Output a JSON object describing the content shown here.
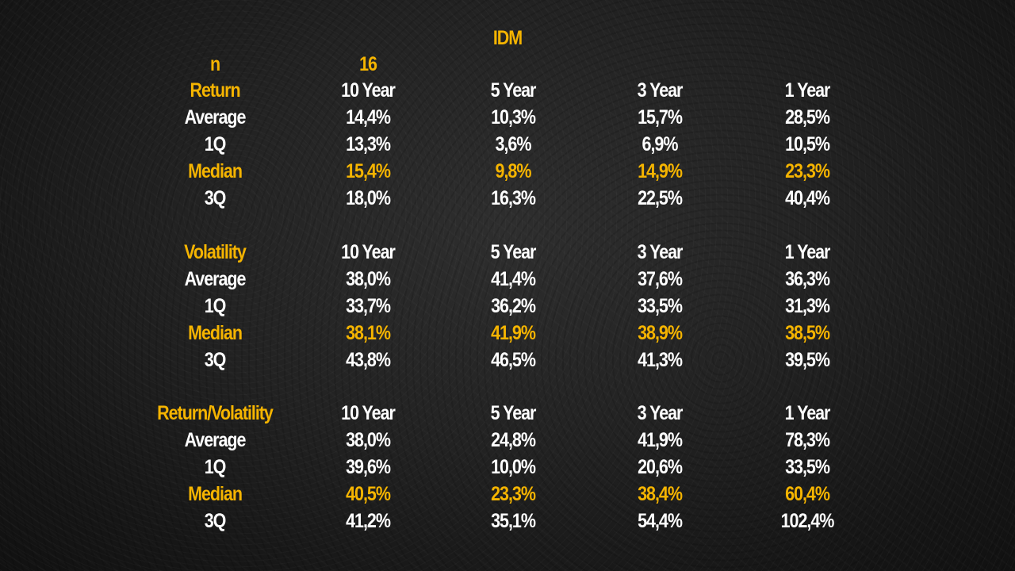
{
  "title": "IDM",
  "n_label": "n",
  "n_value": "16",
  "colors": {
    "accent": "#f5b400",
    "text": "#ffffff",
    "background": "#1e1e1e"
  },
  "sections": [
    {
      "header": "Return",
      "columns": [
        "10 Year",
        "5 Year",
        "3 Year",
        "1 Year"
      ],
      "rows": [
        {
          "label": "Average",
          "values": [
            "14,4%",
            "10,3%",
            "15,7%",
            "28,5%"
          ]
        },
        {
          "label": "1Q",
          "values": [
            "13,3%",
            "3,6%",
            "6,9%",
            "10,5%"
          ]
        },
        {
          "label": "Median",
          "values": [
            "15,4%",
            "9,8%",
            "14,9%",
            "23,3%"
          ]
        },
        {
          "label": "3Q",
          "values": [
            "18,0%",
            "16,3%",
            "22,5%",
            "40,4%"
          ]
        }
      ]
    },
    {
      "header": "Volatility",
      "columns": [
        "10 Year",
        "5 Year",
        "3 Year",
        "1 Year"
      ],
      "rows": [
        {
          "label": "Average",
          "values": [
            "38,0%",
            "41,4%",
            "37,6%",
            "36,3%"
          ]
        },
        {
          "label": "1Q",
          "values": [
            "33,7%",
            "36,2%",
            "33,5%",
            "31,3%"
          ]
        },
        {
          "label": "Median",
          "values": [
            "38,1%",
            "41,9%",
            "38,9%",
            "38,5%"
          ]
        },
        {
          "label": "3Q",
          "values": [
            "43,8%",
            "46,5%",
            "41,3%",
            "39,5%"
          ]
        }
      ]
    },
    {
      "header": "Return/Volatility",
      "columns": [
        "10 Year",
        "5 Year",
        "3 Year",
        "1 Year"
      ],
      "rows": [
        {
          "label": "Average",
          "values": [
            "38,0%",
            "24,8%",
            "41,9%",
            "78,3%"
          ]
        },
        {
          "label": "1Q",
          "values": [
            "39,6%",
            "10,0%",
            "20,6%",
            "33,5%"
          ]
        },
        {
          "label": "Median",
          "values": [
            "40,5%",
            "23,3%",
            "38,4%",
            "60,4%"
          ]
        },
        {
          "label": "3Q",
          "values": [
            "41,2%",
            "35,1%",
            "54,4%",
            "102,4%"
          ]
        }
      ]
    }
  ]
}
